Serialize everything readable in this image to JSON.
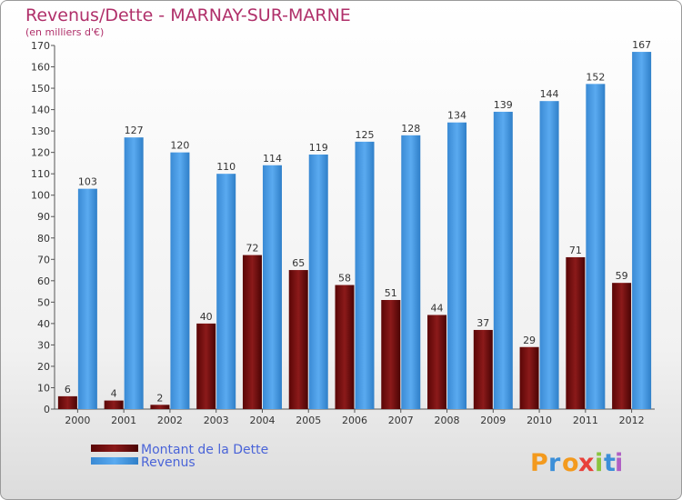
{
  "chart_data": {
    "type": "bar",
    "title": "Revenus/Dette - MARNAY-SUR-MARNE",
    "subtitle": "(en milliers d'€)",
    "categories": [
      "2000",
      "2001",
      "2002",
      "2003",
      "2004",
      "2005",
      "2006",
      "2007",
      "2008",
      "2009",
      "2010",
      "2011",
      "2012"
    ],
    "series": [
      {
        "name": "Montant de la Dette",
        "color": "#7a0f0f",
        "values": [
          6,
          4,
          2,
          40,
          72,
          65,
          58,
          51,
          44,
          37,
          29,
          71,
          59
        ]
      },
      {
        "name": "Revenus",
        "color": "#4a9be0",
        "values": [
          103,
          127,
          120,
          110,
          114,
          119,
          125,
          128,
          134,
          139,
          144,
          152,
          167
        ]
      }
    ],
    "ylim": [
      0,
      170
    ],
    "yticks": [
      0,
      10,
      20,
      30,
      40,
      50,
      60,
      70,
      80,
      90,
      100,
      110,
      120,
      130,
      140,
      150,
      160,
      170
    ],
    "grid": false,
    "legend_position": "bottom-left"
  },
  "branding": {
    "letters": [
      "P",
      "r",
      "o",
      "x",
      "i",
      "t",
      "i"
    ],
    "colors": [
      "#f39a1e",
      "#3c8fd8",
      "#f39a1e",
      "#e8403a",
      "#8ac43f",
      "#3c8fd8",
      "#b05fc4"
    ]
  }
}
